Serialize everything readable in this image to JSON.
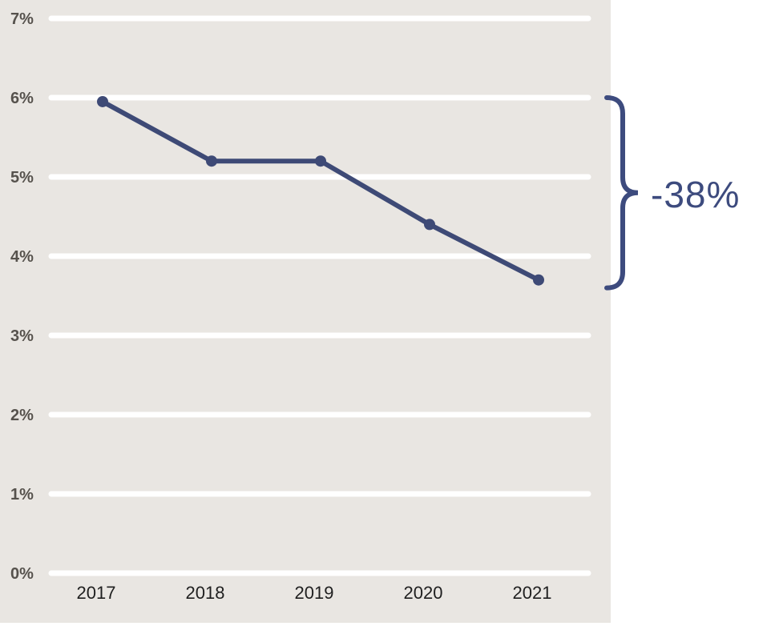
{
  "colors": {
    "canvas_bg": "#ffffff",
    "panel_bg": "#e9e6e2",
    "gridline": "#ffffff",
    "line": "#3e4a76",
    "marker": "#3e4a76",
    "annotation": "#3d4b7e",
    "y_label": "#56524d",
    "x_label": "#1f1f1f"
  },
  "chart_data": {
    "type": "line",
    "title": "",
    "xlabel": "",
    "ylabel": "",
    "categories": [
      "2017",
      "2018",
      "2019",
      "2020",
      "2021"
    ],
    "values": [
      5.95,
      5.2,
      5.2,
      4.4,
      3.7
    ],
    "ylim": [
      0,
      7
    ],
    "ytick_interval": 1,
    "ytick_labels": [
      "0%",
      "1%",
      "2%",
      "3%",
      "4%",
      "5%",
      "6%",
      "7%"
    ],
    "grid": "horizontal-white-lines",
    "legend": "none",
    "annotation": {
      "label": "-38%",
      "shape": "right-curly-brace",
      "span_top_value": 6.0,
      "span_bottom_value": 3.6
    }
  }
}
